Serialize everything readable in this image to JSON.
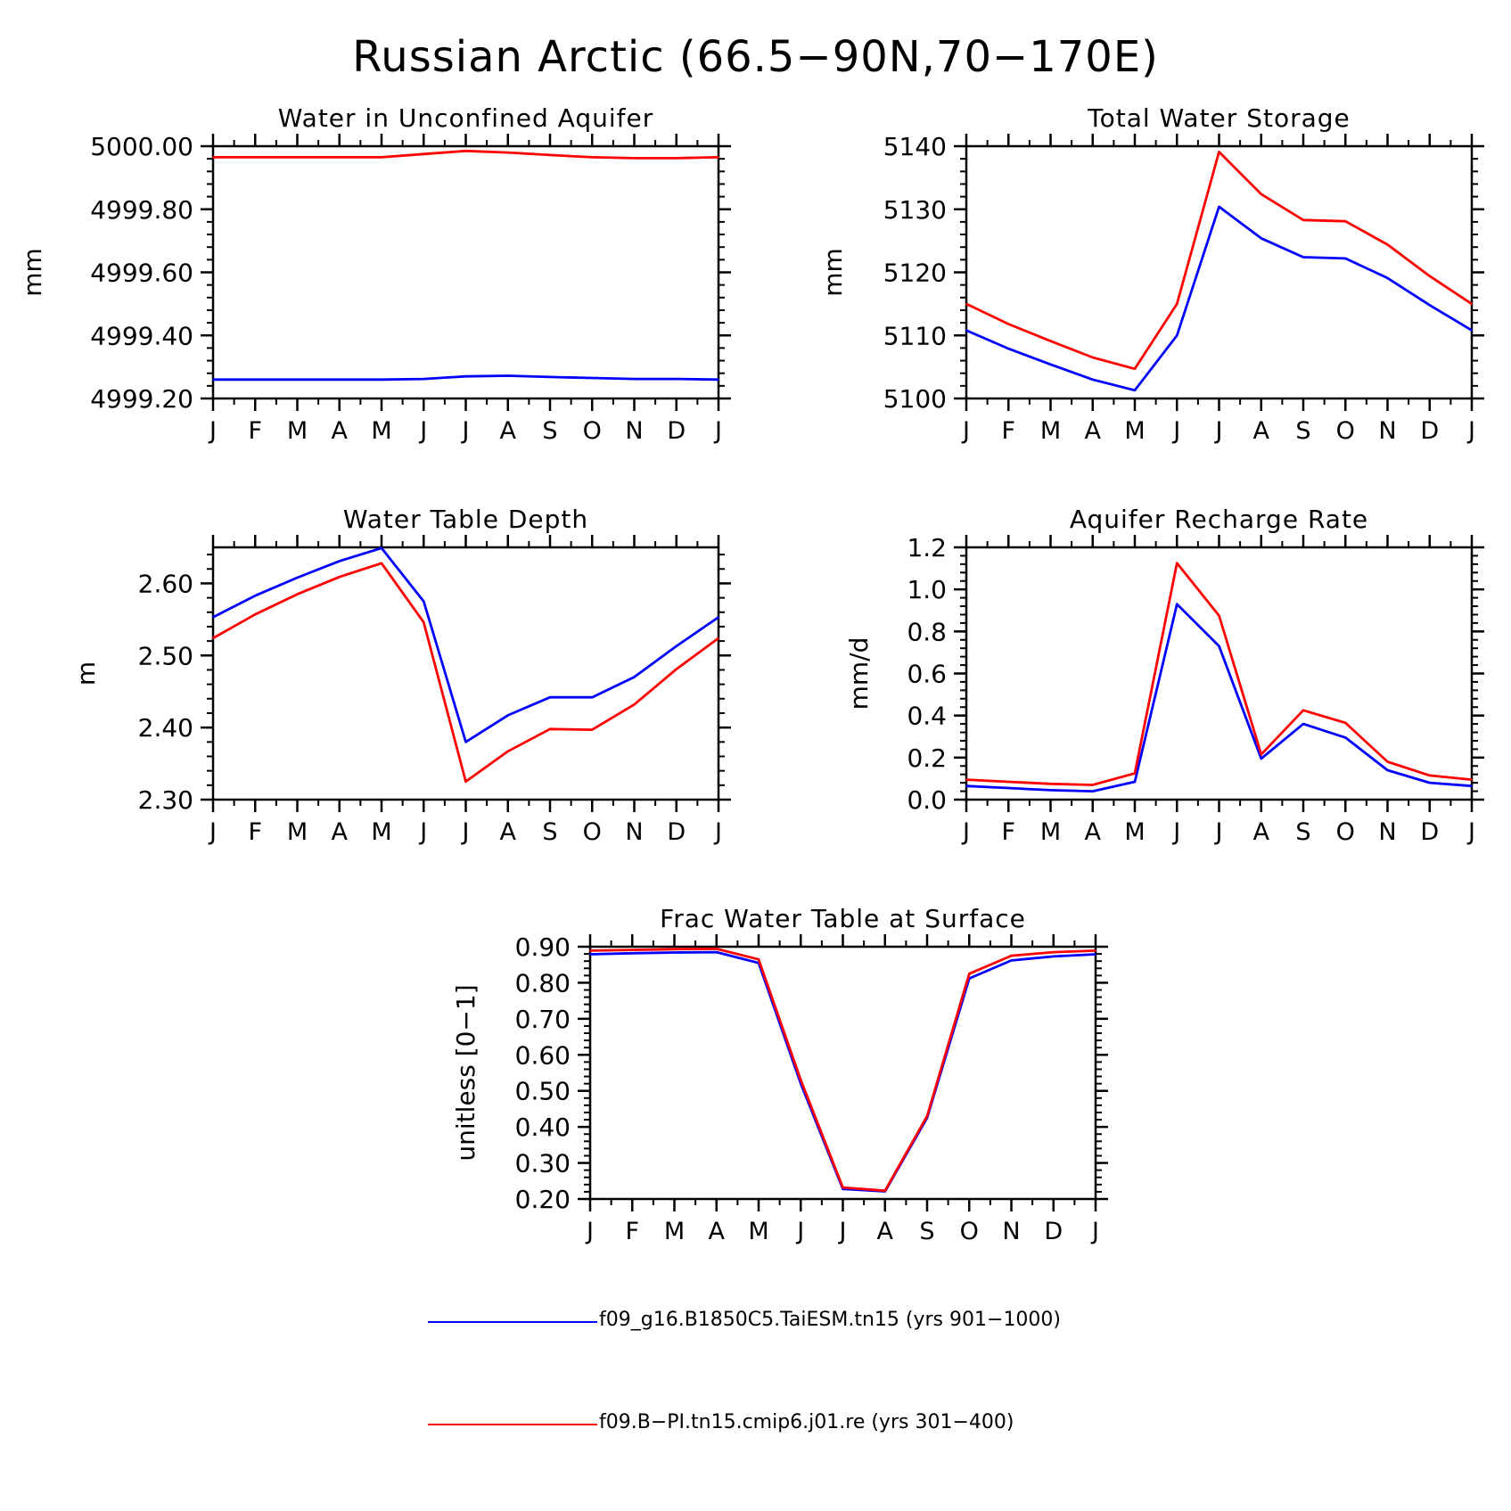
{
  "title": "Russian Arctic (66.5−90N,70−170E)",
  "months": [
    "J",
    "F",
    "M",
    "A",
    "M",
    "J",
    "J",
    "A",
    "S",
    "O",
    "N",
    "D",
    "J"
  ],
  "colors": {
    "series1": "#0000ff",
    "series2": "#ff0000"
  },
  "legend": [
    {
      "label": "f09_g16.B1850C5.TaiESM.tn15 (yrs 901−1000)",
      "color": "#0000ff"
    },
    {
      "label": "f09.B−PI.tn15.cmip6.j01.re (yrs 301−400)",
      "color": "#ff0000"
    }
  ],
  "chart_data": [
    {
      "type": "line",
      "title": "Water in Unconfined Aquifer",
      "ylabel": "mm",
      "ylim": [
        4999.2,
        5000.0
      ],
      "yticks": [
        4999.2,
        4999.4,
        4999.6,
        4999.8,
        5000.0
      ],
      "ytick_labels": [
        "4999.20",
        "4999.40",
        "4999.60",
        "4999.80",
        "5000.00"
      ],
      "series": [
        {
          "values": [
            4999.26,
            4999.26,
            4999.26,
            4999.26,
            4999.26,
            4999.262,
            4999.27,
            4999.272,
            4999.268,
            4999.265,
            4999.262,
            4999.262,
            4999.26
          ]
        },
        {
          "values": [
            4999.965,
            4999.965,
            4999.965,
            4999.965,
            4999.965,
            4999.975,
            4999.985,
            4999.98,
            4999.972,
            4999.965,
            4999.962,
            4999.962,
            4999.965
          ]
        }
      ]
    },
    {
      "type": "line",
      "title": "Total Water Storage",
      "ylabel": "mm",
      "ylim": [
        5100,
        5140
      ],
      "yticks": [
        5100,
        5110,
        5120,
        5130,
        5140
      ],
      "ytick_labels": [
        "5100",
        "5110",
        "5120",
        "5130",
        "5140"
      ],
      "series": [
        {
          "values": [
            5110.8,
            5107.9,
            5105.4,
            5103,
            5101.3,
            5110,
            5130.4,
            5125.4,
            5122.4,
            5122.2,
            5119.1,
            5114.8,
            5110.8
          ]
        },
        {
          "values": [
            5115,
            5111.8,
            5109.1,
            5106.5,
            5104.7,
            5115,
            5139.1,
            5132.4,
            5128.3,
            5128.1,
            5124.4,
            5119.4,
            5115
          ]
        }
      ]
    },
    {
      "type": "line",
      "title": "Water Table Depth",
      "ylabel": "m",
      "ylim": [
        2.3,
        2.65
      ],
      "yticks": [
        2.3,
        2.4,
        2.5,
        2.6
      ],
      "ytick_labels": [
        "2.30",
        "2.40",
        "2.50",
        "2.60"
      ],
      "series": [
        {
          "values": [
            2.553,
            2.583,
            2.608,
            2.631,
            2.649,
            2.575,
            2.38,
            2.417,
            2.442,
            2.442,
            2.47,
            2.513,
            2.553
          ]
        },
        {
          "values": [
            2.524,
            2.557,
            2.585,
            2.609,
            2.628,
            2.546,
            2.325,
            2.367,
            2.398,
            2.397,
            2.432,
            2.481,
            2.524
          ]
        }
      ]
    },
    {
      "type": "line",
      "title": "Aquifer Recharge Rate",
      "ylabel": "mm/d",
      "ylim": [
        0,
        1.2
      ],
      "yticks": [
        0,
        0.2,
        0.4,
        0.6,
        0.8,
        1.0,
        1.2
      ],
      "ytick_labels": [
        "0.0",
        "0.2",
        "0.4",
        "0.6",
        "0.8",
        "1.0",
        "1.2"
      ],
      "series": [
        {
          "values": [
            0.065,
            0.055,
            0.045,
            0.04,
            0.085,
            0.93,
            0.73,
            0.195,
            0.36,
            0.295,
            0.14,
            0.08,
            0.065
          ]
        },
        {
          "values": [
            0.095,
            0.085,
            0.075,
            0.07,
            0.125,
            1.125,
            0.875,
            0.215,
            0.425,
            0.365,
            0.18,
            0.115,
            0.095
          ]
        }
      ]
    },
    {
      "type": "line",
      "title": "Frac Water Table at Surface",
      "ylabel": "unitless [0−1]",
      "ylim": [
        0.2,
        0.9
      ],
      "yticks": [
        0.2,
        0.3,
        0.4,
        0.5,
        0.6,
        0.7,
        0.8,
        0.9
      ],
      "ytick_labels": [
        "0.20",
        "0.30",
        "0.40",
        "0.50",
        "0.60",
        "0.70",
        "0.80",
        "0.90"
      ],
      "series": [
        {
          "values": [
            0.879,
            0.882,
            0.884,
            0.885,
            0.855,
            0.52,
            0.228,
            0.221,
            0.425,
            0.812,
            0.862,
            0.873,
            0.879
          ]
        },
        {
          "values": [
            0.889,
            0.891,
            0.893,
            0.894,
            0.865,
            0.53,
            0.232,
            0.223,
            0.43,
            0.825,
            0.875,
            0.885,
            0.889
          ]
        }
      ]
    }
  ]
}
